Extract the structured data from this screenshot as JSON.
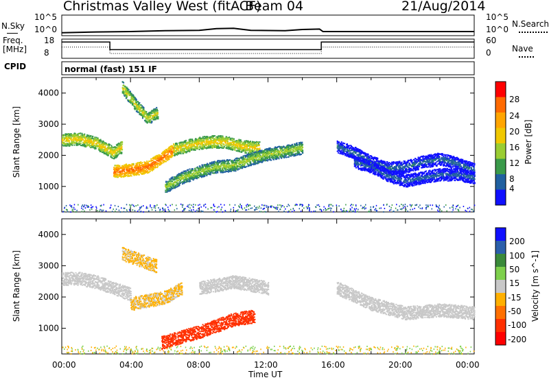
{
  "header": {
    "title": "Christmas Valley West (fitACF)",
    "beam": "Beam 04",
    "date": "21/Aug/2014"
  },
  "noise_panel": {
    "left_label": "N.Sky",
    "right_label": "N.Search",
    "left_ticks": [
      "10^5",
      "10^0"
    ],
    "right_ticks": [
      "10^5",
      "10^0"
    ]
  },
  "freq_panel": {
    "left_label_1": "Freq.",
    "left_label_2": "[MHz]",
    "left_ticks": [
      "18",
      "8"
    ],
    "right_label": "Nave",
    "right_ticks": [
      "60",
      "0"
    ]
  },
  "cpid_panel": {
    "label": "CPID",
    "value": "normal (fast) 151 IF"
  },
  "power_panel": {
    "ylabel": "Slant Range [km]",
    "colorbar_label": "Power [dB]",
    "colorbar_ticks": [
      "28",
      "24",
      "20",
      "16",
      "12",
      "8",
      "4"
    ],
    "colors": [
      "#ff0000",
      "#ff6a00",
      "#ffa500",
      "#f0c800",
      "#9acd32",
      "#3a9a4a",
      "#2060a0",
      "#1010ff"
    ]
  },
  "velocity_panel": {
    "ylabel": "Slant Range [km]",
    "colorbar_label": "Velocity [m s^-1]",
    "colorbar_ticks": [
      "200",
      "100",
      "50",
      "15",
      "-15",
      "-50",
      "-100",
      "-200"
    ],
    "colors": [
      "#1010ff",
      "#2b5faa",
      "#3a8a3a",
      "#7ed04c",
      "#c8c8c8",
      "#ffb000",
      "#ff7000",
      "#ff3000",
      "#ff0000"
    ]
  },
  "xaxis": {
    "label": "Time UT",
    "ticks": [
      "00:00",
      "04:00",
      "08:00",
      "12:00",
      "16:00",
      "20:00",
      "00:00"
    ]
  },
  "chart_data": {
    "type": "heatmap",
    "title": "Christmas Valley West (fitACF)",
    "subtitle": "Beam 04",
    "date": "21/Aug/2014",
    "xlabel": "Time UT",
    "xlim": [
      0,
      24
    ],
    "panels": [
      {
        "name": "Noise",
        "left_series": "N.Sky",
        "right_series": "N.Search",
        "ylim_log10": [
          0,
          5
        ],
        "sky_noise_log10": {
          "x": [
            0,
            2,
            4,
            6,
            8,
            9,
            10,
            11,
            13,
            14,
            15,
            15.2,
            18,
            22,
            24
          ],
          "y": [
            0.7,
            0.9,
            1.0,
            1.2,
            1.3,
            1.7,
            1.8,
            1.3,
            1.2,
            1.5,
            1.6,
            1.0,
            1.0,
            1.0,
            1.0
          ]
        }
      },
      {
        "name": "Frequency",
        "left_series": "Freq. [MHz]",
        "right_series": "Nave",
        "freq_ylim": [
          8,
          18
        ],
        "nave_ylim": [
          0,
          60
        ],
        "freq": {
          "x": [
            0,
            2.8,
            2.8,
            15.1,
            15.1,
            24
          ],
          "y": [
            16.5,
            16.5,
            12.5,
            12.5,
            16.5,
            16.5
          ]
        },
        "nave": {
          "x": [
            0,
            2.8,
            2.8,
            15.1,
            15.1,
            24
          ],
          "y": [
            35,
            35,
            15,
            15,
            35,
            35
          ]
        }
      },
      {
        "name": "Power",
        "ylabel": "Slant Range [km]",
        "ylim": [
          180,
          4500
        ],
        "colorbar": "Power [dB]",
        "crange": [
          0,
          30
        ],
        "scatter_bands": [
          {
            "t": [
              0,
              1,
              2,
              3,
              3.5
            ],
            "r": [
              2500,
              2550,
              2400,
              2100,
              2300
            ],
            "p": 18
          },
          {
            "t": [
              3,
              4,
              5,
              6,
              6.5
            ],
            "r": [
              1500,
              1550,
              1650,
              2000,
              2200
            ],
            "p": 26
          },
          {
            "t": [
              6.5,
              7.5,
              8.5,
              9.5,
              10.5,
              11.5
            ],
            "r": [
              2200,
              2350,
              2450,
              2450,
              2300,
              2250
            ],
            "p": 18
          },
          {
            "t": [
              3.5,
              4.2,
              5,
              5.6
            ],
            "r": [
              4200,
              3700,
              3200,
              3400
            ],
            "p": 16
          },
          {
            "t": [
              6,
              7,
              8,
              9,
              10,
              11,
              12,
              13,
              14
            ],
            "r": [
              1000,
              1300,
              1500,
              1650,
              1700,
              1900,
              2050,
              2150,
              2250
            ],
            "p": 14
          },
          {
            "t": [
              16,
              17,
              18,
              19,
              20,
              21,
              22,
              23,
              24
            ],
            "r": [
              2300,
              2100,
              1800,
              1600,
              1650,
              1800,
              1900,
              1750,
              1550
            ],
            "p": 6
          },
          {
            "t": [
              17,
              18,
              19,
              20,
              21,
              22,
              23,
              24
            ],
            "r": [
              1800,
              1650,
              1350,
              1200,
              1300,
              1400,
              1400,
              1300
            ],
            "p": 5
          }
        ]
      },
      {
        "name": "Velocity",
        "ylabel": "Slant Range [km]",
        "ylim": [
          180,
          4500
        ],
        "colorbar": "Velocity [m s^-1]",
        "crange": [
          -200,
          200
        ],
        "scatter_bands": [
          {
            "t": [
              0,
              1,
              2,
              3,
              4
            ],
            "r": [
              2600,
              2600,
              2500,
              2300,
              2100
            ],
            "v": -5
          },
          {
            "t": [
              4,
              5,
              6,
              7
            ],
            "r": [
              1800,
              1900,
              2000,
              2300
            ],
            "v": -30
          },
          {
            "t": [
              5.8,
              7,
              8,
              9,
              10,
              11.2
            ],
            "r": [
              550,
              750,
              900,
              1100,
              1300,
              1400
            ],
            "v": -150
          },
          {
            "t": [
              3.5,
              4.5,
              5.5
            ],
            "r": [
              3400,
              3200,
              3000
            ],
            "v": -30
          },
          {
            "t": [
              8,
              9,
              10,
              11,
              12
            ],
            "r": [
              2300,
              2400,
              2500,
              2400,
              2300
            ],
            "v": -5
          },
          {
            "t": [
              16,
              18,
              20,
              22,
              24
            ],
            "r": [
              2300,
              1800,
              1500,
              1600,
              1500
            ],
            "v": -5
          }
        ]
      }
    ]
  }
}
